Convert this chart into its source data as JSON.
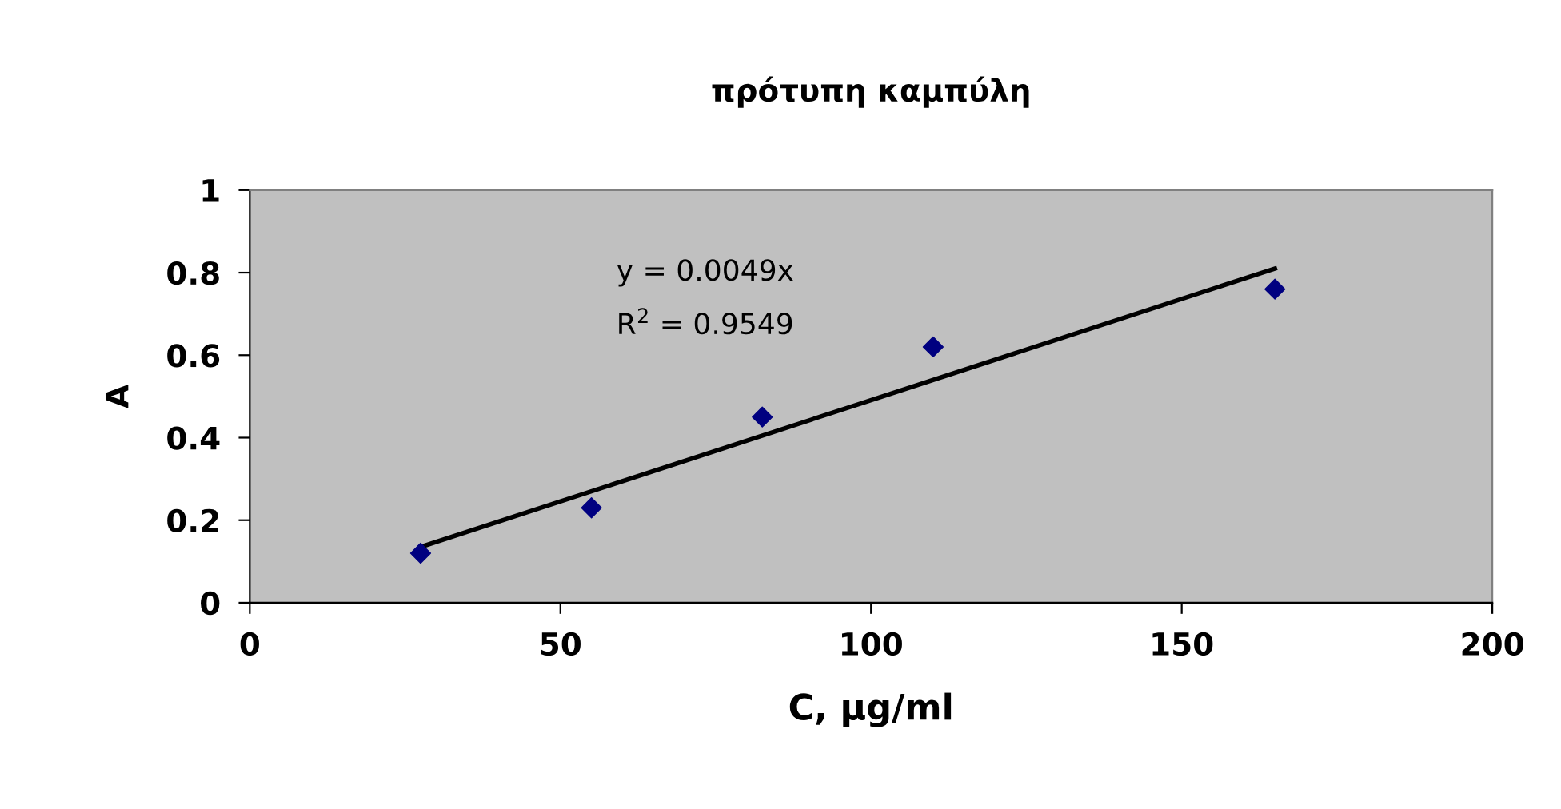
{
  "chart_data": {
    "type": "scatter",
    "title": "πρότυπη καμπύλη",
    "xlabel": "C, μg/ml",
    "ylabel": "A",
    "annotations": [
      "y = 0.0049x",
      "R$^{2}$ = 0.9549"
    ],
    "series": [
      {
        "color": "#000080",
        "x": [
          27.5,
          55,
          82.5,
          110,
          165
        ],
        "values": [
          0.12,
          0.23,
          0.45,
          0.62,
          0.76
        ]
      },
      {
        "type": "line",
        "marker": "none",
        "color": "#000000",
        "x": [
          27.5,
          165
        ],
        "values": [
          0.135,
          0.81
        ]
      }
    ],
    "marker": "diamond",
    "xlim": [
      0,
      200
    ],
    "ylim": [
      0,
      1
    ],
    "xticks": [
      0,
      50,
      100,
      150,
      200
    ],
    "yticks": [
      0,
      0.2,
      0.4,
      0.6,
      0.8,
      1
    ],
    "grid": false,
    "legend": false
  }
}
